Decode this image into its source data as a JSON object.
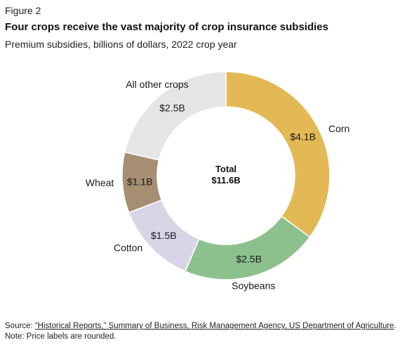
{
  "figure_label": "Figure 2",
  "chart_data": {
    "type": "pie",
    "title": "Four crops receive the vast majority of crop insurance subsidies",
    "subtitle": "Premium subsidies, billions of dollars, 2022 crop year",
    "center_label": {
      "line1": "Total",
      "line2": "$11.6B"
    },
    "slices": [
      {
        "name": "Corn",
        "value": 4.1,
        "label": "$4.1B",
        "color": "#E2B955"
      },
      {
        "name": "Soybeans",
        "value": 2.5,
        "label": "$2.5B",
        "color": "#8CC18E"
      },
      {
        "name": "Cotton",
        "value": 1.5,
        "label": "$1.5B",
        "color": "#D9D4E6"
      },
      {
        "name": "Wheat",
        "value": 1.1,
        "label": "$1.1B",
        "color": "#A68E72"
      },
      {
        "name": "All other crops",
        "value": 2.5,
        "label": "$2.5B",
        "color": "#E5E5E5"
      }
    ]
  },
  "footer": {
    "source_prefix": "Source: ",
    "source_link": "“Historical Reports,” Summary of Business, Risk Management Agency, US Department of Agriculture",
    "source_suffix": ".",
    "note": "Note: Price labels are rounded."
  }
}
